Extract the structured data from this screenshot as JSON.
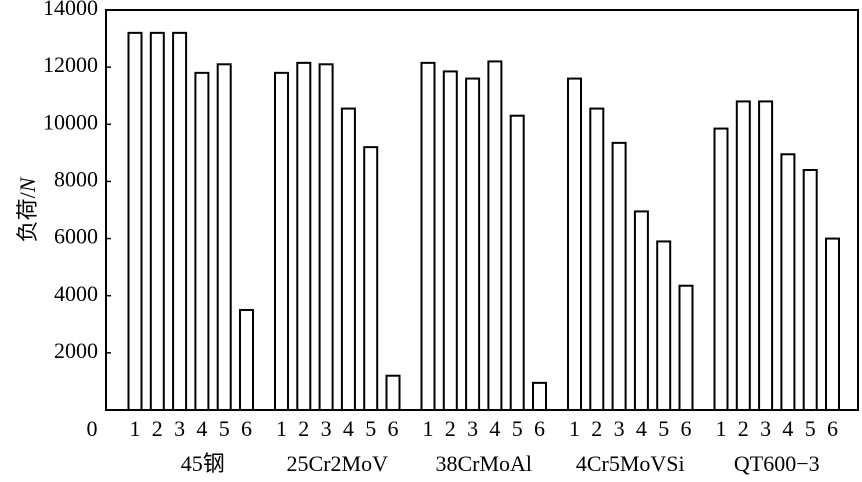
{
  "chart_data": {
    "type": "bar",
    "y_label": "负荷/",
    "y_label_unit": "N",
    "ylim": [
      0,
      14000
    ],
    "yticks": [
      0,
      2000,
      4000,
      6000,
      8000,
      10000,
      12000,
      14000
    ],
    "bar_labels": [
      "1",
      "2",
      "3",
      "4",
      "5",
      "6"
    ],
    "color": "#ffffff",
    "groups": [
      {
        "name": "45钢",
        "values": [
          13200,
          13200,
          13200,
          11800,
          12100,
          3500
        ]
      },
      {
        "name": "25Cr2MoV",
        "values": [
          11800,
          12150,
          12100,
          10550,
          9200,
          1200
        ]
      },
      {
        "name": "38CrMoAl",
        "values": [
          12150,
          11850,
          11600,
          12200,
          10300,
          950
        ]
      },
      {
        "name": "4Cr5MoVSi",
        "values": [
          11600,
          10550,
          9350,
          6950,
          5900,
          4350
        ]
      },
      {
        "name": "QT600−3",
        "values": [
          9850,
          10800,
          10800,
          8950,
          8400,
          6000
        ]
      }
    ]
  }
}
